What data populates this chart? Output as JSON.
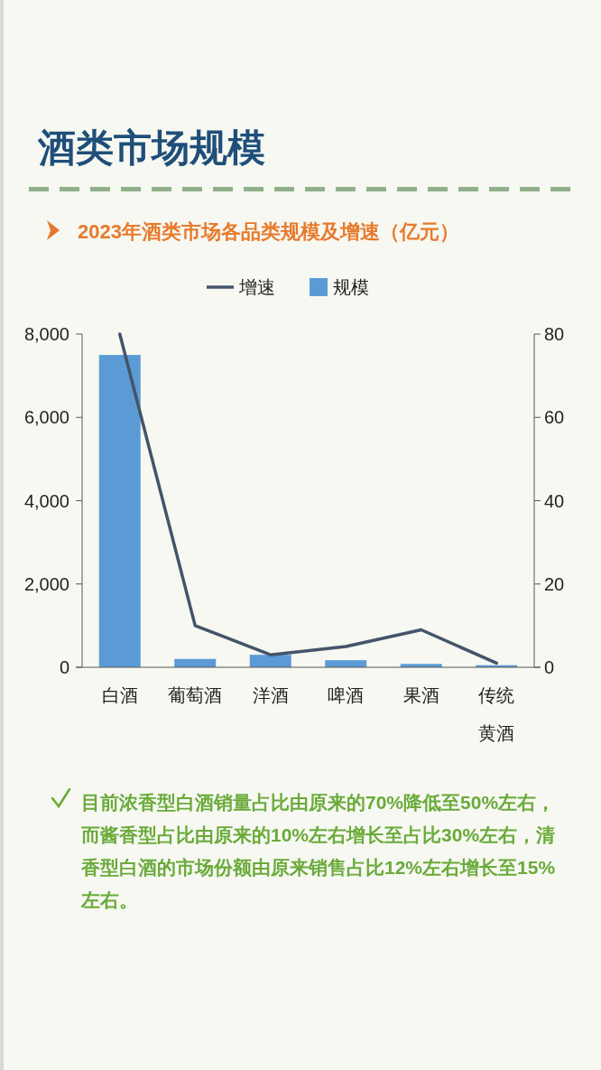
{
  "chart_data": {
    "type": "bar",
    "title": "酒类市场规模",
    "subtitle": "2023年酒类市场各品类规模及增速（亿元）",
    "categories": [
      "白酒",
      "葡萄酒",
      "洋酒",
      "啤酒",
      "果酒",
      "传统黄酒"
    ],
    "series": [
      {
        "name": "增速",
        "type": "line",
        "axis": "y2",
        "color": "#44546a",
        "values": [
          80,
          10,
          3,
          5,
          9,
          1
        ]
      },
      {
        "name": "规模",
        "color": "#5b9bd5",
        "values": [
          7500,
          200,
          300,
          170,
          80,
          50
        ]
      }
    ],
    "ylim": [
      0,
      8000
    ],
    "yticks": [
      0,
      {
        "value": 2000,
        "label": "2,000"
      },
      {
        "value": 4000,
        "label": "4,000"
      },
      {
        "value": 6000,
        "label": "6,000"
      },
      {
        "value": 8000,
        "label": "8,000"
      }
    ],
    "y2lim": [
      0,
      80
    ],
    "y2ticks": [
      0,
      20,
      40,
      60,
      80
    ],
    "legend": "top",
    "grid": false,
    "marker": "none",
    "annotations": [
      "目前浓香型白酒销量占比由原来的70%降低至50%左右，而酱香型占比由原来的10%左右增长至占比30%左右，清香型白酒的市场份额由原来销售占比12%左右增长至15%左右。"
    ]
  }
}
